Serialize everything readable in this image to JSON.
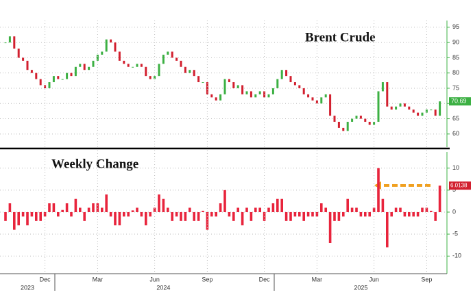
{
  "chart_data": [
    {
      "type": "candlestick",
      "title": "Brent Crude",
      "color_up": "#3cb043",
      "color_down": "#d2202f",
      "ylim": [
        55.7,
        97.2
      ],
      "yticks": [
        60,
        65,
        70,
        75,
        80,
        85,
        90,
        95
      ],
      "grid": true,
      "last_label_color": "#3cb043",
      "values": [
        90,
        92,
        88,
        85,
        84,
        81,
        80,
        78,
        76,
        75,
        77,
        79,
        78,
        78,
        80,
        79,
        82,
        83,
        81,
        82,
        84,
        86,
        87,
        91,
        90,
        87,
        84,
        83,
        82,
        82,
        83,
        82,
        79,
        78,
        79,
        83,
        86,
        87,
        85,
        84,
        82,
        80,
        81,
        79,
        77,
        77,
        73,
        72,
        71,
        73,
        78,
        77,
        75,
        76,
        73,
        74,
        72,
        73,
        74,
        72,
        73,
        75,
        78,
        81,
        79,
        77,
        76,
        75,
        73,
        72,
        71,
        70,
        72,
        73,
        66,
        64,
        62,
        61,
        64,
        65,
        66,
        65,
        64,
        63,
        64,
        74,
        77,
        69,
        68,
        69,
        70,
        69,
        68,
        67,
        66,
        67,
        68,
        68,
        66,
        70.69
      ]
    },
    {
      "type": "bar",
      "title": "Weekly Change",
      "color": "#e8243c",
      "ylim": [
        -14,
        14
      ],
      "yticks": [
        -10,
        -5,
        0,
        5,
        10
      ],
      "grid": true,
      "categories": [
        null,
        null,
        null,
        null,
        null,
        null,
        null,
        null,
        null,
        "Dec",
        null,
        null,
        null,
        null,
        null,
        null,
        null,
        null,
        null,
        null,
        null,
        "Mar",
        null,
        null,
        null,
        null,
        null,
        null,
        null,
        null,
        null,
        null,
        null,
        null,
        "Jun",
        null,
        null,
        null,
        null,
        null,
        null,
        null,
        null,
        null,
        null,
        null,
        "Sep",
        null,
        null,
        null,
        null,
        null,
        null,
        null,
        null,
        null,
        null,
        null,
        null,
        "Dec",
        null,
        null,
        null,
        null,
        null,
        null,
        null,
        null,
        null,
        null,
        null,
        "Mar",
        null,
        null,
        null,
        null,
        null,
        null,
        null,
        null,
        null,
        null,
        null,
        null,
        "Jun",
        null,
        null,
        null,
        null,
        null,
        null,
        null,
        null,
        null,
        null,
        null,
        "Sep",
        null,
        null,
        null
      ],
      "year_ticks": [
        {
          "value": 5,
          "label": "2023"
        },
        {
          "value": 36,
          "label": "2024"
        },
        {
          "value": 81,
          "label": "2025"
        }
      ],
      "values": [
        -2,
        2,
        -4,
        -3,
        -1,
        -3,
        -1,
        -2,
        -2,
        -1,
        2,
        2,
        -1,
        0.5,
        2,
        -1,
        3,
        1,
        -2,
        1,
        2,
        2,
        1,
        4,
        -1,
        -3,
        -3,
        -1,
        -1,
        0.4,
        1,
        -1,
        -3,
        -1,
        1,
        4,
        3,
        1,
        -2,
        -1,
        -2,
        -2,
        1,
        -2,
        -2,
        0.3,
        -4,
        -1,
        -1,
        2,
        5,
        -1,
        -2,
        1,
        -3,
        1,
        -2,
        1,
        1,
        -2,
        1,
        2,
        3,
        3,
        -2,
        -2,
        -1,
        -1,
        -2,
        -1,
        -1,
        -1,
        2,
        1,
        -7,
        -2,
        -2,
        -1,
        3,
        1,
        1,
        -1,
        -1,
        -1,
        1,
        10,
        3,
        -8,
        -1,
        1,
        1,
        -1,
        -1,
        -1,
        -1,
        1,
        1,
        0.3,
        -2,
        6.0138
      ]
    }
  ]
}
